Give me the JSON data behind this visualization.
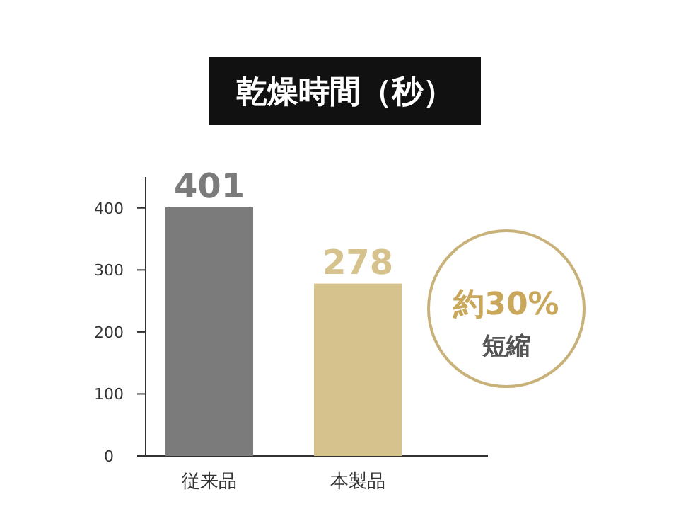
{
  "chart_data": {
    "type": "bar",
    "title": "乾燥時間（秒）",
    "categories": [
      "従来品",
      "本製品"
    ],
    "values": [
      401,
      278
    ],
    "colors": [
      "#7b7b7b",
      "#d6c28c"
    ],
    "ylim": [
      0,
      450
    ],
    "yticks": [
      0,
      100,
      200,
      300,
      400
    ],
    "data_labels": true,
    "grid": false,
    "annotations": [
      "約30%",
      "短縮"
    ]
  }
}
